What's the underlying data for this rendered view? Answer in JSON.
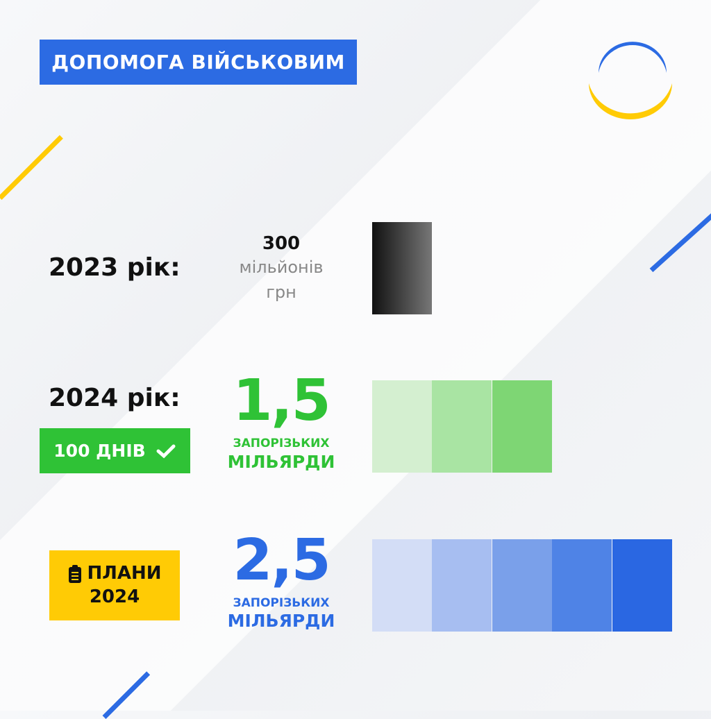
{
  "header": {
    "title": "ДОПОМОГА ВІЙСЬКОВИМ"
  },
  "rows": [
    {
      "year": "2023 рік:",
      "amount": "300",
      "unit1": "мільйонів",
      "unit2": "грн"
    },
    {
      "year": "2024 рік:",
      "badge": "100 ДНІВ",
      "badge_icon": "checkmark-icon",
      "amount": "1,5",
      "unit1": "ЗАПОРІЗЬКИХ",
      "unit2": "МІЛЬЯРДИ"
    },
    {
      "badge_line1": "ПЛАНИ",
      "badge_line2": "2024",
      "badge_icon": "clipboard-icon",
      "amount": "2,5",
      "unit1": "ЗАПОРІЗЬКИХ",
      "unit2": "МІЛЬЯРДИ"
    }
  ],
  "colors": {
    "blue": "#2c6be3",
    "green": "#2fc236",
    "yellow": "#ffcb05",
    "black": "#111111"
  },
  "chart_data": {
    "type": "bar",
    "categories": [
      "2023 рік",
      "2024 рік (100 днів)",
      "Плани 2024"
    ],
    "values": [
      0.3,
      1.5,
      2.5
    ],
    "unit": "млрд грн",
    "segments": [
      1,
      3,
      5
    ],
    "segment_colors": [
      [
        "#111111"
      ],
      [
        "#d4efd0",
        "#a9e4a3",
        "#7ed674"
      ],
      [
        "#d3ddf6",
        "#a7bef1",
        "#7aa0ea",
        "#4f83e6",
        "#2a67e2"
      ]
    ]
  }
}
